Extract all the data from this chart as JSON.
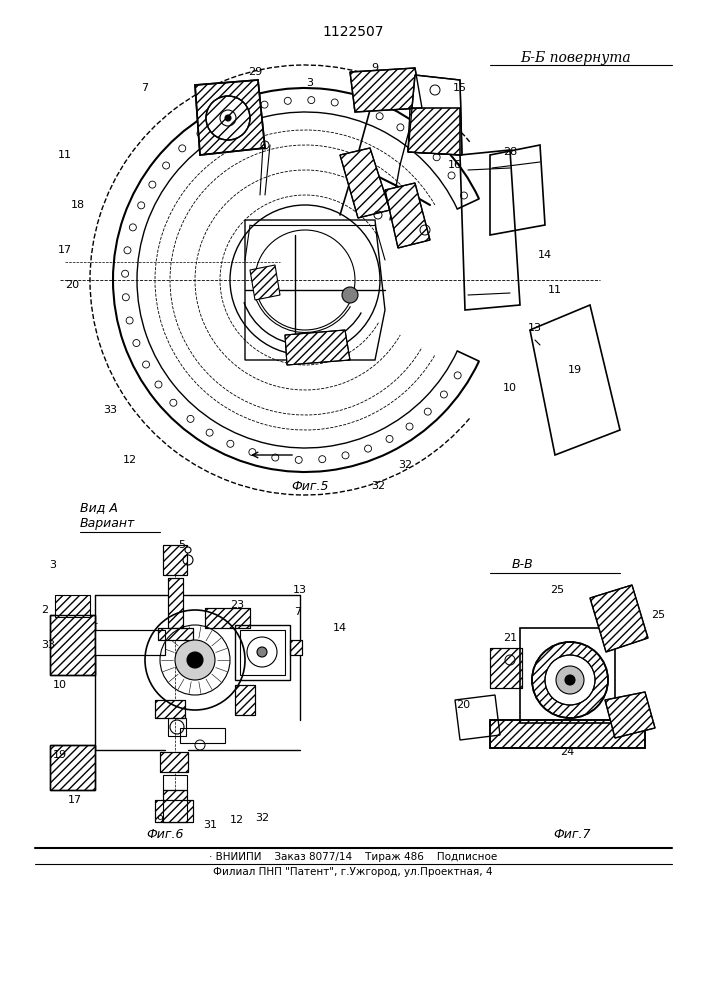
{
  "patent_number": "1122507",
  "title_bb": "Б-Б повернута",
  "title_vida": "Вид А",
  "title_variant": "Вариант",
  "title_bb2": "В-В",
  "fig5_label": "Фиг.5",
  "fig6_label": "Фиг.6",
  "fig7_label": "Фиг.7",
  "footer_line1": "· ВНИИПИ    Заказ 8077/14    Тираж 486    Подписное",
  "footer_line2": "Филиал ПНП \"Патент\", г.Ужгород, ул.Проектная, 4",
  "bg_color": "#ffffff",
  "line_color": "#000000",
  "fig_width": 7.07,
  "fig_height": 10.0,
  "dpi": 100
}
